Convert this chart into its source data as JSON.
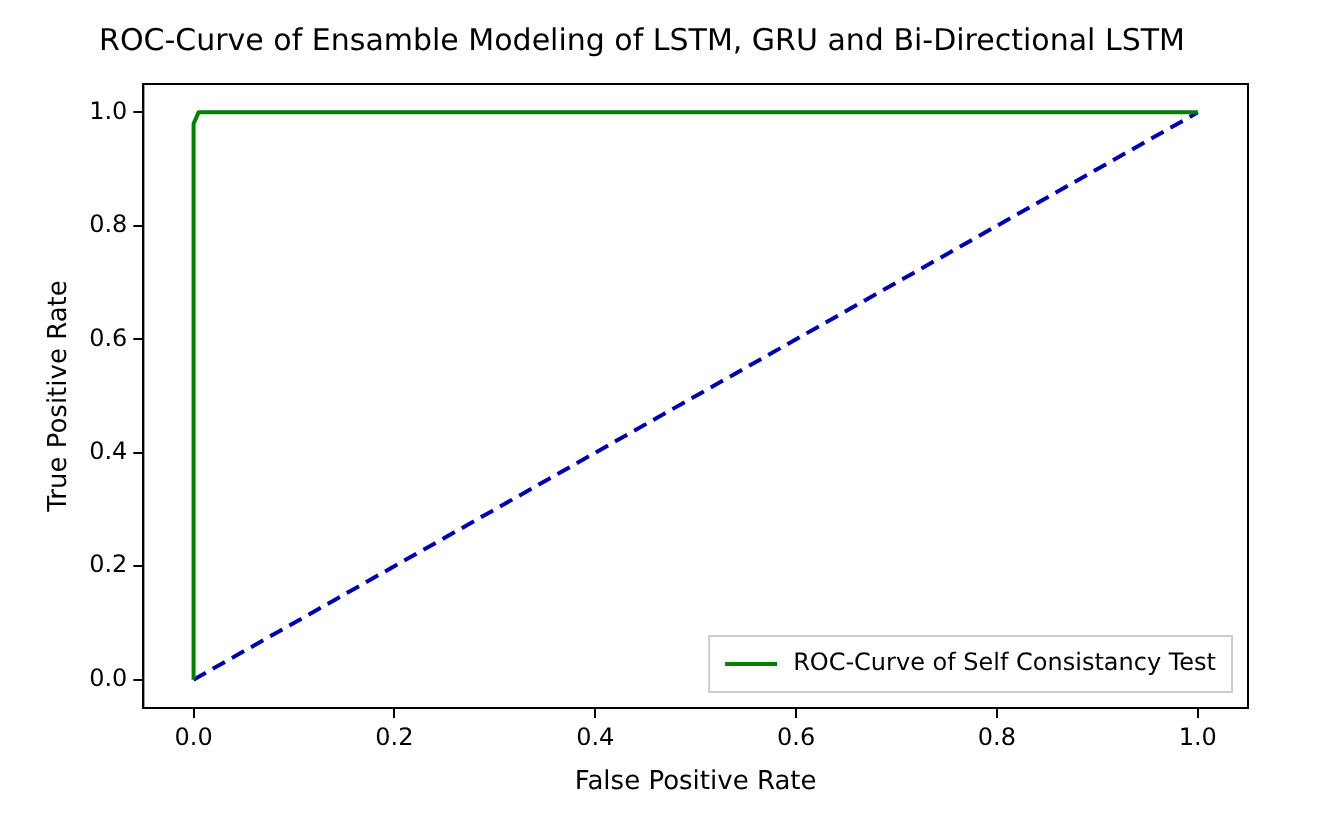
{
  "chart_data": {
    "type": "line",
    "title": "ROC-Curve of Ensamble Modeling of LSTM, GRU and Bi-Directional LSTM",
    "xlabel": "False Positive Rate",
    "ylabel": "True Positive Rate",
    "series": [
      {
        "name": "ROC-Curve of Self Consistancy Test",
        "color": "#008000",
        "x": [
          0,
          0,
          0.005,
          1
        ],
        "values": [
          0,
          0.98,
          1,
          1
        ],
        "line_style": "solid"
      },
      {
        "color": "#0000aa",
        "x": [
          0,
          1
        ],
        "values": [
          0,
          1
        ],
        "line_style": "dashed"
      }
    ],
    "xlim": [
      -0.05,
      1.05
    ],
    "ylim": [
      -0.05,
      1.05
    ],
    "xticks": [
      {
        "value": 0,
        "label": "0.0"
      },
      {
        "value": 0.2,
        "label": "0.2"
      },
      {
        "value": 0.4,
        "label": "0.4"
      },
      {
        "value": 0.6,
        "label": "0.6"
      },
      {
        "value": 0.8,
        "label": "0.8"
      },
      {
        "value": 1,
        "label": "1.0"
      }
    ],
    "yticks": [
      {
        "value": 0,
        "label": "0.0"
      },
      {
        "value": 0.2,
        "label": "0.2"
      },
      {
        "value": 0.4,
        "label": "0.4"
      },
      {
        "value": 0.6,
        "label": "0.6"
      },
      {
        "value": 0.8,
        "label": "0.8"
      },
      {
        "value": 1,
        "label": "1.0"
      }
    ],
    "grid": false,
    "legend": "bottom right",
    "marker": "none"
  }
}
